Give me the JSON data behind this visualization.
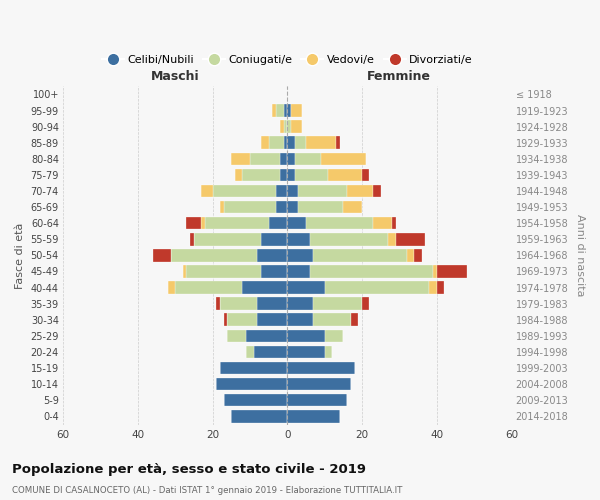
{
  "age_groups": [
    "0-4",
    "5-9",
    "10-14",
    "15-19",
    "20-24",
    "25-29",
    "30-34",
    "35-39",
    "40-44",
    "45-49",
    "50-54",
    "55-59",
    "60-64",
    "65-69",
    "70-74",
    "75-79",
    "80-84",
    "85-89",
    "90-94",
    "95-99",
    "100+"
  ],
  "birth_years": [
    "2014-2018",
    "2009-2013",
    "2004-2008",
    "1999-2003",
    "1994-1998",
    "1989-1993",
    "1984-1988",
    "1979-1983",
    "1974-1978",
    "1969-1973",
    "1964-1968",
    "1959-1963",
    "1954-1958",
    "1949-1953",
    "1944-1948",
    "1939-1943",
    "1934-1938",
    "1929-1933",
    "1924-1928",
    "1919-1923",
    "≤ 1918"
  ],
  "maschi": {
    "celibi": [
      15,
      17,
      19,
      18,
      9,
      11,
      8,
      8,
      12,
      7,
      8,
      7,
      5,
      3,
      3,
      2,
      2,
      1,
      0,
      1,
      0
    ],
    "coniugati": [
      0,
      0,
      0,
      0,
      2,
      5,
      8,
      10,
      18,
      20,
      23,
      18,
      17,
      14,
      17,
      10,
      8,
      4,
      1,
      2,
      0
    ],
    "vedovi": [
      0,
      0,
      0,
      0,
      0,
      0,
      0,
      0,
      2,
      1,
      0,
      0,
      1,
      1,
      3,
      2,
      5,
      2,
      1,
      1,
      0
    ],
    "divorziati": [
      0,
      0,
      0,
      0,
      0,
      0,
      1,
      1,
      0,
      0,
      5,
      1,
      4,
      0,
      0,
      0,
      0,
      0,
      0,
      0,
      0
    ]
  },
  "femmine": {
    "nubili": [
      14,
      16,
      17,
      18,
      10,
      10,
      7,
      7,
      10,
      6,
      7,
      6,
      5,
      3,
      3,
      2,
      2,
      2,
      0,
      1,
      0
    ],
    "coniugate": [
      0,
      0,
      0,
      0,
      2,
      5,
      10,
      13,
      28,
      33,
      25,
      21,
      18,
      12,
      13,
      9,
      7,
      3,
      1,
      0,
      0
    ],
    "vedove": [
      0,
      0,
      0,
      0,
      0,
      0,
      0,
      0,
      2,
      1,
      2,
      2,
      5,
      5,
      7,
      9,
      12,
      8,
      3,
      3,
      0
    ],
    "divorziate": [
      0,
      0,
      0,
      0,
      0,
      0,
      2,
      2,
      2,
      8,
      2,
      8,
      1,
      0,
      2,
      2,
      0,
      1,
      0,
      0,
      0
    ]
  },
  "colors": {
    "celibi": "#3d6fa0",
    "coniugati": "#c5d9a0",
    "vedovi": "#f5c96a",
    "divorziati": "#c0392b"
  },
  "title": "Popolazione per età, sesso e stato civile - 2019",
  "subtitle": "COMUNE DI CASALNOCETO (AL) - Dati ISTAT 1° gennaio 2019 - Elaborazione TUTTITALIA.IT",
  "xlabel_left": "Maschi",
  "xlabel_right": "Femmine",
  "ylabel_left": "Fasce di età",
  "ylabel_right": "Anni di nascita",
  "xlim": 60,
  "legend_labels": [
    "Celibi/Nubili",
    "Coniugati/e",
    "Vedovi/e",
    "Divorziati/e"
  ],
  "bg_color": "#f7f7f7",
  "grid_color": "#cccccc"
}
